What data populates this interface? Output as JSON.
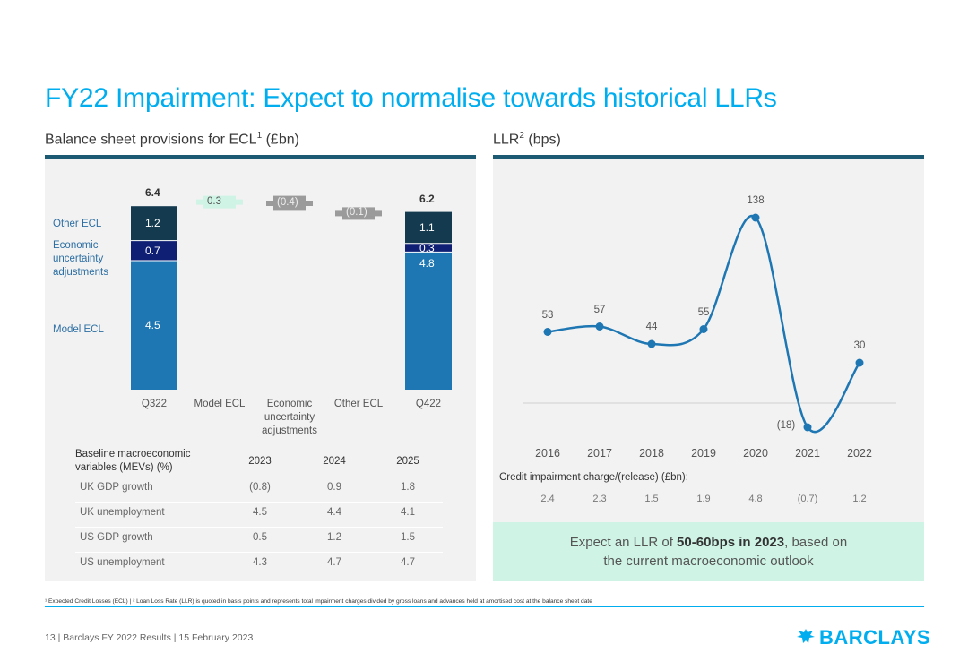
{
  "page": {
    "title": "FY22 Impairment: Expect to normalise towards historical LLRs",
    "footer": "13 | Barclays FY 2022 Results | 15 February 2023",
    "footnote": "¹ Expected Credit Losses (ECL) | ² Loan Loss Rate (LLR) is quoted in basis points and represents total impairment charges divided by gross loans and advances held at amortised cost at the balance sheet date",
    "logo_text": "BARCLAYS"
  },
  "left": {
    "subtitle_pre": "Balance sheet provisions for ECL",
    "subtitle_sup": "1",
    "subtitle_post": " (£bn)"
  },
  "right": {
    "subtitle_pre": "LLR",
    "subtitle_sup": "2",
    "subtitle_post": " (bps)"
  },
  "callout": {
    "pre": "Expect an LLR of ",
    "bold": "50-60bps in 2023",
    "post": ", based on",
    "line2": "the current macroeconomic outlook"
  },
  "mev_table": {
    "header_line1": "Baseline macroeconomic",
    "header_line2": "variables (MEVs) (%)",
    "years": [
      "2023",
      "2024",
      "2025"
    ],
    "rows": [
      {
        "label": "UK GDP growth",
        "values": [
          "(0.8)",
          "0.9",
          "1.8"
        ]
      },
      {
        "label": "UK unemployment",
        "values": [
          "4.5",
          "4.4",
          "4.1"
        ]
      },
      {
        "label": "US GDP growth",
        "values": [
          "0.5",
          "1.2",
          "1.5"
        ]
      },
      {
        "label": "US unemployment",
        "values": [
          "4.3",
          "4.7",
          "4.7"
        ]
      }
    ]
  },
  "credit_impairment": {
    "label": "Credit impairment charge/(release) (£bn):",
    "values": [
      "2.4",
      "2.3",
      "1.5",
      "1.9",
      "4.8",
      "(0.7)",
      "1.2"
    ]
  },
  "colors": {
    "model_ecl": "#1e77b3",
    "economic_uncertainty": "#0f1f74",
    "other_ecl": "#133a4f",
    "bridge_up": "#cff4e6",
    "bridge_down": "#9b9b9b",
    "line": "#1e77b3",
    "accent": "#00aeef"
  },
  "chart_data": [
    {
      "type": "bar",
      "subtype": "stacked-waterfall",
      "title": "Balance sheet provisions for ECL (£bn)",
      "categories": [
        "Q322",
        "Model ECL",
        "Economic uncertainty adjustments",
        "Other ECL",
        "Q422"
      ],
      "category_lines": [
        [
          "Q322"
        ],
        [
          "Model ECL"
        ],
        [
          "Economic",
          "uncertainty",
          "adjustments"
        ],
        [
          "Other ECL"
        ],
        [
          "Q422"
        ]
      ],
      "series": [
        {
          "name": "Model ECL",
          "values": [
            4.5,
            null,
            null,
            null,
            4.8
          ]
        },
        {
          "name": "Economic uncertainty adjustments",
          "values": [
            0.7,
            null,
            null,
            null,
            0.3
          ]
        },
        {
          "name": "Other ECL",
          "values": [
            1.2,
            null,
            null,
            null,
            1.1
          ]
        }
      ],
      "series_labels": [
        [
          "Model ECL"
        ],
        [
          "Economic",
          "uncertainty",
          "adjustments"
        ],
        [
          "Other ECL"
        ]
      ],
      "segment_labels": {
        "Q322": [
          "4.5",
          "0.7",
          "1.2"
        ],
        "Q422": [
          "4.8",
          "0.3",
          "1.1"
        ]
      },
      "totals": {
        "Q322": "6.4",
        "Q422": "6.2"
      },
      "bridge": [
        {
          "category": "Model ECL",
          "value": 0.3,
          "label": "0.3"
        },
        {
          "category": "Economic uncertainty adjustments",
          "value": -0.4,
          "label": "(0.4)"
        },
        {
          "category": "Other ECL",
          "value": -0.1,
          "label": "(0.1)"
        }
      ]
    },
    {
      "type": "line",
      "title": "LLR (bps)",
      "x": [
        "2016",
        "2017",
        "2018",
        "2019",
        "2020",
        "2021",
        "2022"
      ],
      "values": [
        53,
        57,
        44,
        55,
        138,
        -18,
        30
      ],
      "labels": [
        "53",
        "57",
        "44",
        "55",
        "138",
        "(18)",
        "30"
      ],
      "xlabel": "",
      "ylabel": "bps",
      "ylim": [
        -25,
        145
      ]
    }
  ]
}
